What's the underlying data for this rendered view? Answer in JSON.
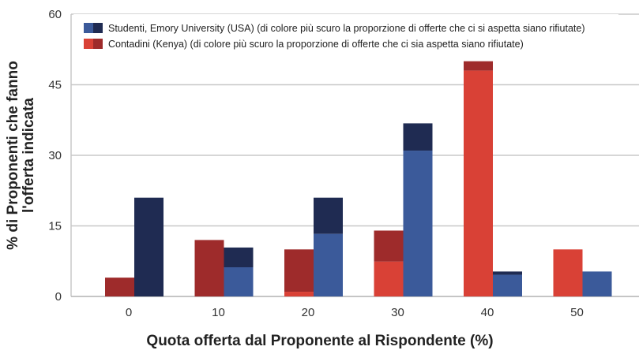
{
  "chart_data": {
    "type": "bar",
    "stacked_shading": true,
    "xlabel": "Quota offerta dal Proponente al Rispondente (%)",
    "ylabel": [
      "% di Proponenti che fanno",
      "l'offerta indicata"
    ],
    "categories": [
      "0",
      "10",
      "20",
      "30",
      "40",
      "50"
    ],
    "ylim": [
      0,
      60
    ],
    "yticks": [
      0,
      15,
      30,
      45,
      60
    ],
    "grid": true,
    "legend_position": "top",
    "series": [
      {
        "name": "Contadini (Kenya) (di colore più scuro la proporzione di offerte che ci sia aspetta siano rifiutate)",
        "total": [
          4,
          12,
          10,
          14,
          50,
          10
        ],
        "light_part": [
          0,
          0,
          1,
          7.4,
          48,
          10
        ],
        "colors": {
          "light": "#d94136",
          "dark": "#9e2b2b"
        }
      },
      {
        "name": "Studenti, Emory University (USA) (di colore più scuro la proporzione di offerte che ci si aspetta siano rifiutate)",
        "total": [
          21,
          10.4,
          21,
          36.8,
          5.3,
          5.3
        ],
        "light_part": [
          0,
          6.2,
          13.3,
          31,
          4.6,
          5.3
        ],
        "colors": {
          "light": "#3b5a9a",
          "dark": "#1f2b52"
        }
      }
    ]
  }
}
